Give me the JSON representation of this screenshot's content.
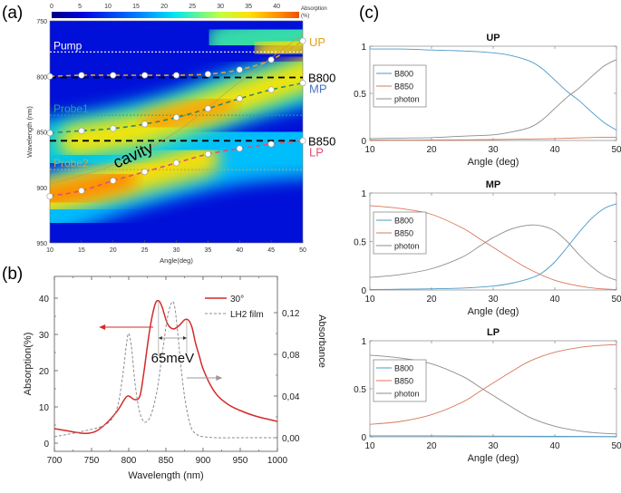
{
  "panel_labels": {
    "a": "(a)",
    "b": "(b)",
    "c": "(c)"
  },
  "chart_data": [
    {
      "id": "a",
      "type": "heatmap",
      "title": "",
      "xlabel": "Angle(deg)",
      "ylabel": "Wavelength (nm)",
      "xlim": [
        10,
        50
      ],
      "ylim": [
        750,
        950
      ],
      "xticks": [
        10,
        15,
        20,
        25,
        30,
        35,
        40,
        45,
        50
      ],
      "yticks": [
        750,
        800,
        850,
        900,
        950
      ],
      "colorbar": {
        "label": "Absorption (%)",
        "ticks": [
          0,
          5,
          10,
          15,
          20,
          25,
          30,
          35,
          40
        ],
        "range": [
          0,
          44
        ]
      },
      "horizontal_lines": [
        {
          "label": "Pump",
          "y": 778,
          "color": "#ffffff",
          "style": "dotted"
        },
        {
          "label": "Probe1",
          "y": 835,
          "color": "#2aa58a",
          "style": "dotted"
        },
        {
          "label": "Probe2",
          "y": 884,
          "color": "#c8a64a",
          "style": "dotted"
        },
        {
          "label": "B800",
          "y": 801,
          "color": "#000000",
          "style": "dashed"
        },
        {
          "label": "B850",
          "y": 858,
          "color": "#000000",
          "style": "dashed"
        }
      ],
      "branch_labels": [
        {
          "label": "UP",
          "color": "#e0a020"
        },
        {
          "label": "MP",
          "color": "#4a74c8"
        },
        {
          "label": "LP",
          "color": "#e05070"
        }
      ],
      "annotations": [
        "cavity"
      ],
      "series": [
        {
          "name": "UP",
          "color": "#e0a030",
          "x": [
            10,
            15,
            20,
            25,
            30,
            35,
            40,
            45,
            50
          ],
          "y": [
            800,
            799,
            799,
            799,
            799,
            798,
            794,
            785,
            768
          ]
        },
        {
          "name": "MP",
          "color": "#2a8a70",
          "x": [
            10,
            15,
            20,
            25,
            30,
            35,
            40,
            45,
            50
          ],
          "y": [
            851,
            849,
            847,
            843,
            837,
            829,
            820,
            812,
            806
          ]
        },
        {
          "name": "LP",
          "color": "#e05070",
          "x": [
            10,
            15,
            20,
            25,
            30,
            35,
            40,
            45,
            50
          ],
          "y": [
            908,
            903,
            894,
            886,
            878,
            870,
            865,
            861,
            858
          ]
        },
        {
          "name": "cavity",
          "color": "#c8a040",
          "x": [
            10,
            20,
            30,
            40,
            50
          ],
          "y": [
            897,
            880,
            850,
            805,
            762
          ]
        }
      ]
    },
    {
      "id": "b",
      "type": "line",
      "xlabel": "Wavelength (nm)",
      "ylabel": "Absorption(%)",
      "ylabel_right": "Absorbance",
      "xlim": [
        700,
        1000
      ],
      "ylim": [
        -2,
        45
      ],
      "ylim_right": [
        -0.02,
        0.14
      ],
      "xticks": [
        700,
        750,
        800,
        850,
        900,
        950,
        1000
      ],
      "yticks": [
        0,
        10,
        20,
        30,
        40
      ],
      "yticks_right_labels": [
        "0,00",
        "0,04",
        "0,08",
        "0,12"
      ],
      "yticks_right": [
        0.0,
        0.04,
        0.08,
        0.12
      ],
      "annotation": "65meV",
      "legend": [
        "30°",
        "LH2 film"
      ],
      "series": [
        {
          "name": "30°",
          "axis": "left",
          "color": "#d42a2a",
          "style": "solid",
          "x": [
            700,
            720,
            740,
            755,
            770,
            785,
            795,
            800,
            808,
            815,
            820,
            828,
            835,
            840,
            845,
            852,
            860,
            868,
            875,
            880,
            885,
            890,
            895,
            900,
            910,
            920,
            935,
            950,
            970,
            1000
          ],
          "y": [
            4,
            3.3,
            2.7,
            3.2,
            5.5,
            9,
            12.3,
            13,
            12,
            13,
            19,
            31,
            38,
            39.3,
            37.5,
            33,
            31.5,
            32.5,
            34,
            34,
            32,
            27.5,
            24,
            20.5,
            16,
            13,
            10.5,
            9,
            7.5,
            6
          ]
        },
        {
          "name": "LH2 film",
          "axis": "right",
          "color": "#8c8c8c",
          "style": "dashed",
          "x": [
            700,
            730,
            760,
            775,
            785,
            792,
            797,
            800,
            804,
            808,
            813,
            818,
            823,
            830,
            838,
            845,
            852,
            858,
            862,
            866,
            870,
            875,
            880,
            885,
            892,
            900,
            920,
            950,
            1000
          ],
          "y": [
            0.001,
            0.005,
            0.01,
            0.016,
            0.03,
            0.06,
            0.09,
            0.1,
            0.085,
            0.055,
            0.03,
            0.018,
            0.015,
            0.022,
            0.045,
            0.08,
            0.115,
            0.13,
            0.125,
            0.1,
            0.07,
            0.04,
            0.02,
            0.008,
            0.003,
            0.001,
            0.0,
            0.0,
            0.0
          ]
        }
      ]
    },
    {
      "id": "c-up",
      "type": "line",
      "title": "UP",
      "xlabel": "Angle (deg)",
      "ylabel": "",
      "xlim": [
        10,
        50
      ],
      "ylim": [
        0,
        1
      ],
      "xticks": [
        10,
        20,
        30,
        40,
        50
      ],
      "yticks": [
        0,
        0.5,
        1
      ],
      "legend": [
        "B800",
        "B850",
        "photon"
      ],
      "series": [
        {
          "name": "B800",
          "color": "#4a9ac8",
          "x": [
            10,
            15,
            20,
            25,
            30,
            33,
            36,
            38,
            40,
            42,
            43,
            44,
            46,
            48,
            50
          ],
          "y": [
            0.97,
            0.97,
            0.96,
            0.95,
            0.93,
            0.9,
            0.84,
            0.76,
            0.64,
            0.52,
            0.47,
            0.42,
            0.3,
            0.19,
            0.11
          ]
        },
        {
          "name": "B850",
          "color": "#d8785a",
          "x": [
            10,
            20,
            30,
            40,
            45,
            50
          ],
          "y": [
            0.005,
            0.005,
            0.01,
            0.02,
            0.03,
            0.035
          ]
        },
        {
          "name": "photon",
          "color": "#8c8c8c",
          "x": [
            10,
            15,
            20,
            25,
            30,
            33,
            36,
            38,
            40,
            42,
            43,
            44,
            46,
            48,
            50
          ],
          "y": [
            0.02,
            0.025,
            0.03,
            0.045,
            0.06,
            0.09,
            0.14,
            0.22,
            0.34,
            0.46,
            0.51,
            0.56,
            0.68,
            0.79,
            0.86
          ]
        }
      ]
    },
    {
      "id": "c-mp",
      "type": "line",
      "title": "MP",
      "xlabel": "Angle (deg)",
      "ylabel": "",
      "xlim": [
        10,
        50
      ],
      "ylim": [
        0,
        1
      ],
      "xticks": [
        10,
        20,
        30,
        40,
        50
      ],
      "yticks": [
        0,
        0.5,
        1
      ],
      "legend": [
        "B800",
        "B850",
        "photon"
      ],
      "series": [
        {
          "name": "B800",
          "color": "#4a9ac8",
          "x": [
            10,
            15,
            20,
            25,
            30,
            33,
            36,
            38,
            40,
            42,
            44,
            46,
            48,
            50
          ],
          "y": [
            0.005,
            0.008,
            0.012,
            0.02,
            0.04,
            0.07,
            0.12,
            0.18,
            0.29,
            0.44,
            0.6,
            0.74,
            0.84,
            0.89
          ]
        },
        {
          "name": "B850",
          "color": "#d8785a",
          "x": [
            10,
            15,
            20,
            25,
            28,
            30,
            33,
            36,
            40,
            44,
            47,
            50
          ],
          "y": [
            0.87,
            0.84,
            0.78,
            0.64,
            0.52,
            0.44,
            0.32,
            0.21,
            0.1,
            0.04,
            0.015,
            0.005
          ]
        },
        {
          "name": "photon",
          "color": "#8c8c8c",
          "x": [
            10,
            15,
            20,
            25,
            28,
            30,
            33,
            36,
            38,
            40,
            42,
            44,
            46,
            48,
            50
          ],
          "y": [
            0.13,
            0.16,
            0.22,
            0.34,
            0.46,
            0.54,
            0.63,
            0.67,
            0.66,
            0.61,
            0.5,
            0.36,
            0.24,
            0.15,
            0.1
          ]
        }
      ]
    },
    {
      "id": "c-lp",
      "type": "line",
      "title": "LP",
      "xlabel": "Angle (deg)",
      "ylabel": "",
      "xlim": [
        10,
        50
      ],
      "ylim": [
        0,
        1
      ],
      "xticks": [
        10,
        20,
        30,
        40,
        50
      ],
      "yticks": [
        0,
        0.5,
        1
      ],
      "legend": [
        "B800",
        "B850",
        "photon"
      ],
      "series": [
        {
          "name": "B800",
          "color": "#4a9ac8",
          "x": [
            10,
            20,
            30,
            40,
            50
          ],
          "y": [
            0.01,
            0.01,
            0.008,
            0.005,
            0.003
          ]
        },
        {
          "name": "B850",
          "color": "#d8785a",
          "x": [
            10,
            15,
            20,
            25,
            28,
            30,
            33,
            36,
            40,
            44,
            47,
            50
          ],
          "y": [
            0.13,
            0.16,
            0.23,
            0.36,
            0.48,
            0.56,
            0.68,
            0.79,
            0.88,
            0.93,
            0.95,
            0.96
          ]
        },
        {
          "name": "photon",
          "color": "#8c8c8c",
          "x": [
            10,
            15,
            20,
            25,
            28,
            30,
            33,
            36,
            40,
            44,
            47,
            50
          ],
          "y": [
            0.85,
            0.82,
            0.76,
            0.63,
            0.51,
            0.43,
            0.31,
            0.2,
            0.11,
            0.06,
            0.04,
            0.03
          ]
        }
      ]
    }
  ]
}
